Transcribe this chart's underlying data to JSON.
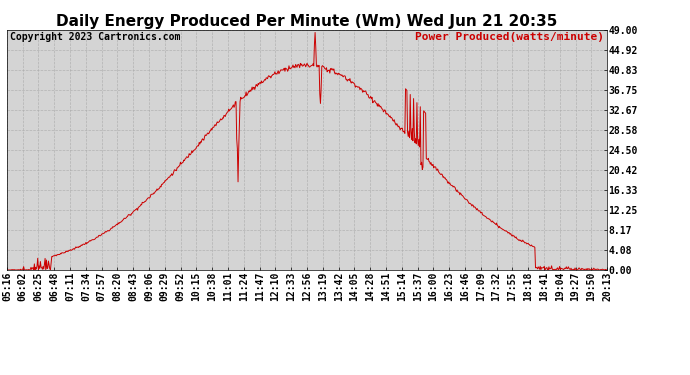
{
  "title": "Daily Energy Produced Per Minute (Wm) Wed Jun 21 20:35",
  "copyright": "Copyright 2023 Cartronics.com",
  "legend_label": "Power Produced(watts/minute)",
  "y_ticks": [
    0.0,
    4.08,
    8.17,
    12.25,
    16.33,
    20.42,
    24.5,
    28.58,
    32.67,
    36.75,
    40.83,
    44.92,
    49.0
  ],
  "ylim": [
    0,
    49.0
  ],
  "line_color": "#cc0000",
  "bg_color": "#ffffff",
  "plot_bg_color": "#d4d4d4",
  "grid_color": "#aaaaaa",
  "title_fontsize": 11,
  "copyright_fontsize": 7,
  "legend_fontsize": 8,
  "tick_fontsize": 7,
  "x_tick_labels": [
    "05:16",
    "06:02",
    "06:25",
    "06:48",
    "07:11",
    "07:34",
    "07:57",
    "08:20",
    "08:43",
    "09:06",
    "09:29",
    "09:52",
    "10:15",
    "10:38",
    "11:01",
    "11:24",
    "11:47",
    "12:10",
    "12:33",
    "12:56",
    "13:19",
    "13:42",
    "14:05",
    "14:28",
    "14:51",
    "15:14",
    "15:37",
    "16:00",
    "16:23",
    "16:46",
    "17:09",
    "17:32",
    "17:55",
    "18:18",
    "18:41",
    "19:04",
    "19:27",
    "19:50",
    "20:13"
  ]
}
